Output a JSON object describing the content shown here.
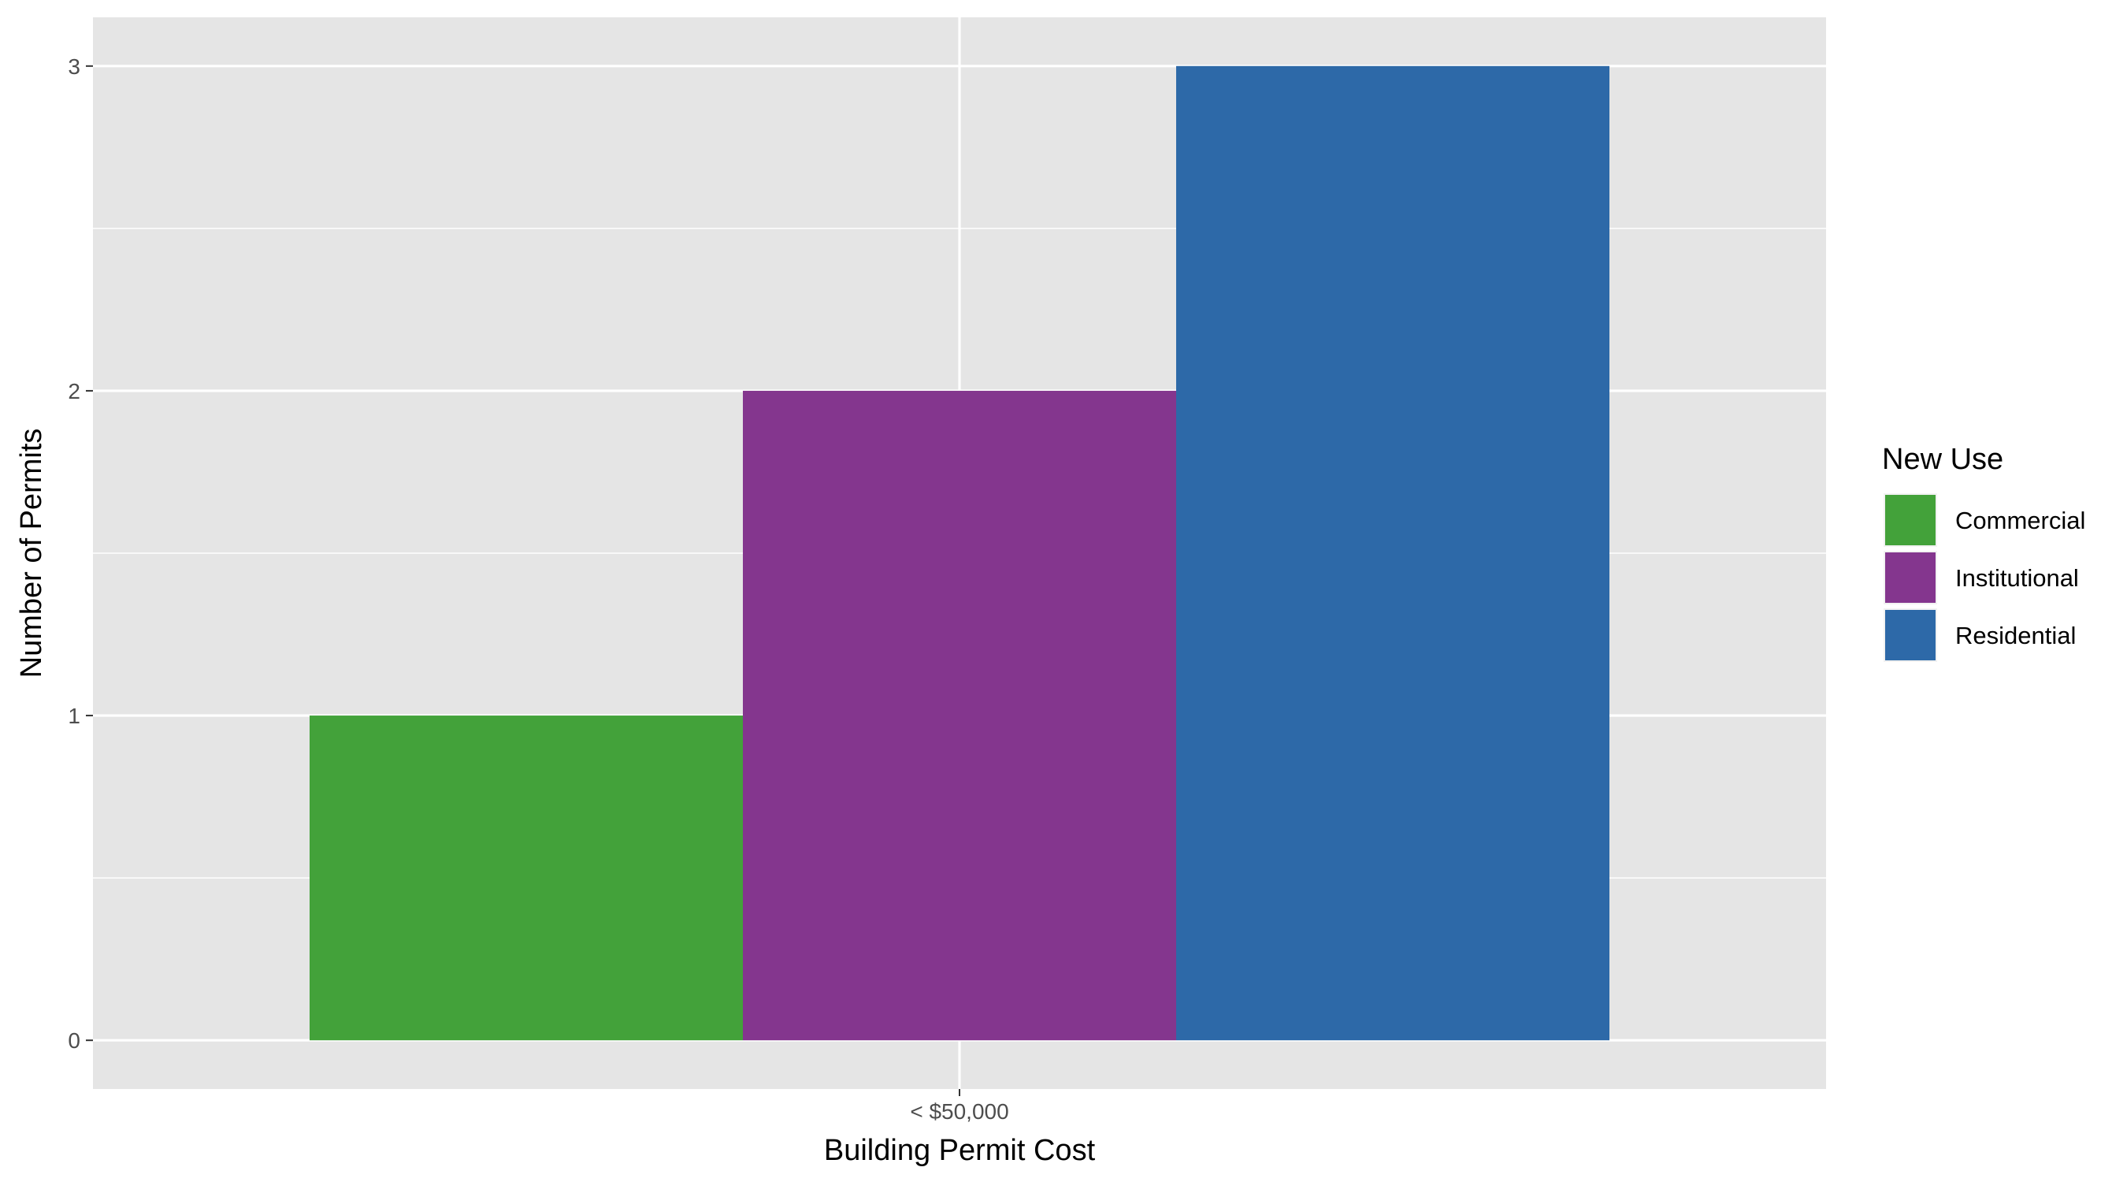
{
  "chart_data": {
    "type": "bar",
    "categories": [
      "< $50,000"
    ],
    "series": [
      {
        "name": "Commercial",
        "values": [
          1
        ],
        "color": "#43a23a"
      },
      {
        "name": "Institutional",
        "values": [
          2
        ],
        "color": "#84368e"
      },
      {
        "name": "Residential",
        "values": [
          3
        ],
        "color": "#2d69a8"
      }
    ],
    "xlabel": "Building Permit Cost",
    "ylabel": "Number of Permits",
    "ylim": [
      -0.15,
      3.15
    ],
    "yticks": [
      0,
      1,
      2,
      3
    ],
    "grid": true,
    "legend": {
      "title": "New Use",
      "position": "right"
    },
    "panel_background": "#e5e5e5",
    "grid_color": "#ffffff"
  }
}
